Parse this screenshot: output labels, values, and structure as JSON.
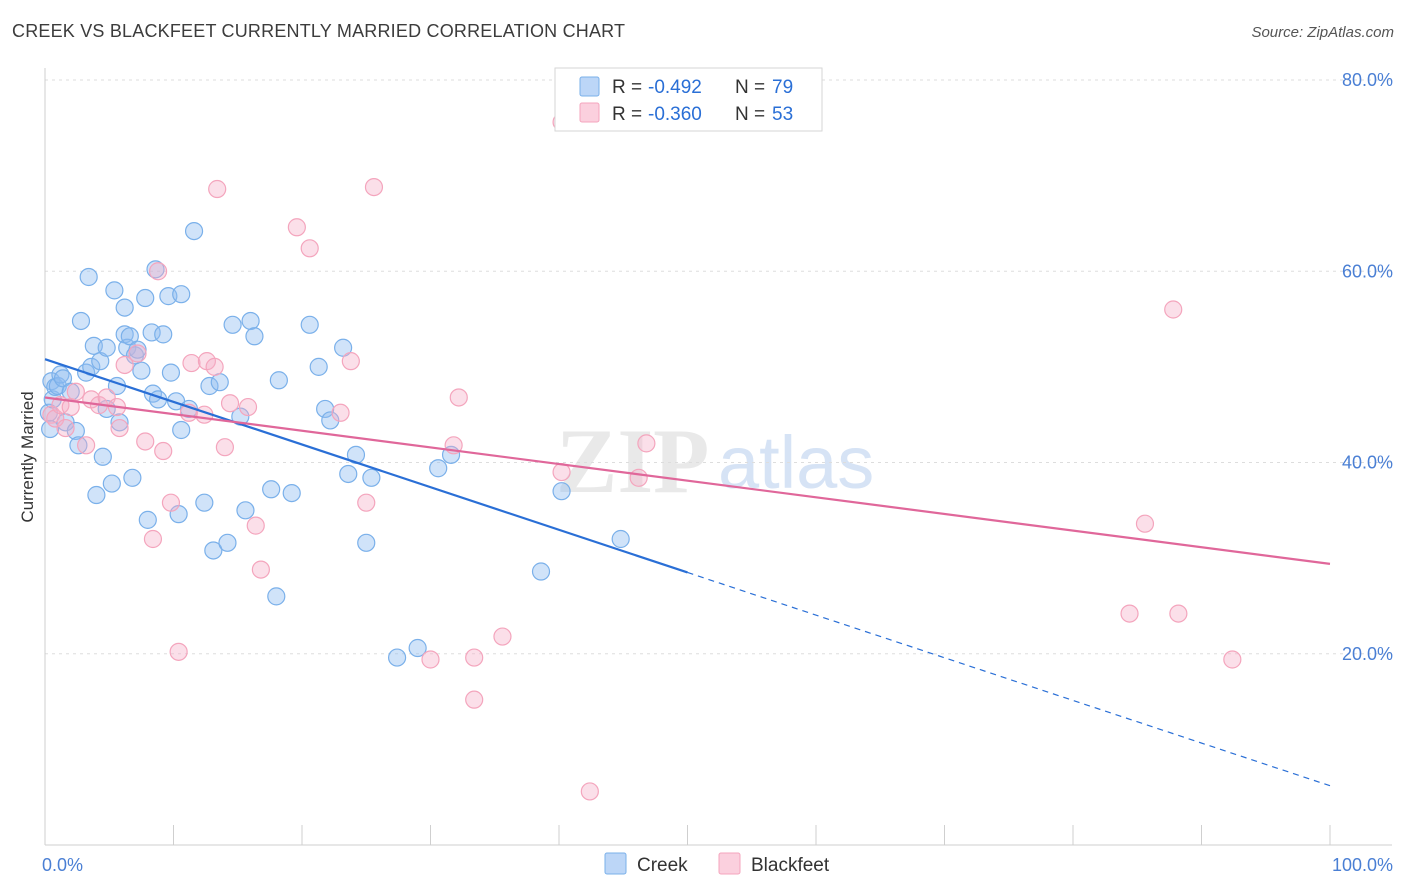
{
  "title": "CREEK VS BLACKFEET CURRENTLY MARRIED CORRELATION CHART",
  "source": "Source: ZipAtlas.com",
  "watermark": {
    "part1": "ZIP",
    "part2": "atlas"
  },
  "chart_data": {
    "type": "scatter",
    "ylabel": "Currently Married",
    "xlim": [
      0,
      100
    ],
    "ylim": [
      0,
      80
    ],
    "x_tick_labels": [
      {
        "value": 0,
        "label": "0.0%"
      },
      {
        "value": 100,
        "label": "100.0%"
      }
    ],
    "y_tick_labels": [
      {
        "value": 20,
        "label": "20.0%"
      },
      {
        "value": 40,
        "label": "40.0%"
      },
      {
        "value": 60,
        "label": "60.0%"
      },
      {
        "value": 80,
        "label": "80.0%"
      }
    ],
    "grid": true,
    "legend_position": "top-center",
    "stats": [
      {
        "series": "Creek",
        "r_label": "R =",
        "r_value": "-0.492",
        "n_label": "N =",
        "n_value": "79"
      },
      {
        "series": "Blackfeet",
        "r_label": "R =",
        "r_value": "-0.360",
        "n_label": "N =",
        "n_value": "53"
      }
    ],
    "series": [
      {
        "name": "Creek",
        "color": "#7ab0ea",
        "line_color": "#2a6fd6",
        "trend": {
          "x0": 0,
          "y0": 50.8,
          "x1": 50,
          "y1": 28.5,
          "dash_x1": 100,
          "dash_y1": 6.2
        },
        "points": [
          [
            0.3,
            45.2
          ],
          [
            0.4,
            43.5
          ],
          [
            0.5,
            48.5
          ],
          [
            0.6,
            46.6
          ],
          [
            0.8,
            47.9
          ],
          [
            1.0,
            48.0
          ],
          [
            1.2,
            49.2
          ],
          [
            1.4,
            48.8
          ],
          [
            1.6,
            44.2
          ],
          [
            2.0,
            47.4
          ],
          [
            2.4,
            43.3
          ],
          [
            2.6,
            41.8
          ],
          [
            2.8,
            54.8
          ],
          [
            3.2,
            49.4
          ],
          [
            3.4,
            59.4
          ],
          [
            3.6,
            50.0
          ],
          [
            3.8,
            52.2
          ],
          [
            4.0,
            36.6
          ],
          [
            4.3,
            50.6
          ],
          [
            4.5,
            40.6
          ],
          [
            4.8,
            45.6
          ],
          [
            4.8,
            52.0
          ],
          [
            5.2,
            37.8
          ],
          [
            5.4,
            58.0
          ],
          [
            5.6,
            48.0
          ],
          [
            5.8,
            44.2
          ],
          [
            6.2,
            56.2
          ],
          [
            6.2,
            53.4
          ],
          [
            6.4,
            52.0
          ],
          [
            6.6,
            53.2
          ],
          [
            6.8,
            38.4
          ],
          [
            7.0,
            51.2
          ],
          [
            7.2,
            51.8
          ],
          [
            7.5,
            49.6
          ],
          [
            7.8,
            57.2
          ],
          [
            8.0,
            34.0
          ],
          [
            8.3,
            53.6
          ],
          [
            8.4,
            47.2
          ],
          [
            8.6,
            60.2
          ],
          [
            8.8,
            46.6
          ],
          [
            9.2,
            53.4
          ],
          [
            9.6,
            57.4
          ],
          [
            9.8,
            49.4
          ],
          [
            10.2,
            46.4
          ],
          [
            10.4,
            34.6
          ],
          [
            10.6,
            57.6
          ],
          [
            10.6,
            43.4
          ],
          [
            11.2,
            45.6
          ],
          [
            11.6,
            64.2
          ],
          [
            12.4,
            35.8
          ],
          [
            12.8,
            48.0
          ],
          [
            13.1,
            30.8
          ],
          [
            13.6,
            48.4
          ],
          [
            14.2,
            31.6
          ],
          [
            14.6,
            54.4
          ],
          [
            15.2,
            44.8
          ],
          [
            15.6,
            35.0
          ],
          [
            16.0,
            54.8
          ],
          [
            16.3,
            53.2
          ],
          [
            17.6,
            37.2
          ],
          [
            18.0,
            26.0
          ],
          [
            18.2,
            48.6
          ],
          [
            19.2,
            36.8
          ],
          [
            20.6,
            54.4
          ],
          [
            21.3,
            50.0
          ],
          [
            21.8,
            45.6
          ],
          [
            22.2,
            44.4
          ],
          [
            23.2,
            52.0
          ],
          [
            23.6,
            38.8
          ],
          [
            24.2,
            40.8
          ],
          [
            25.0,
            31.6
          ],
          [
            25.4,
            38.4
          ],
          [
            27.4,
            19.6
          ],
          [
            29.0,
            20.6
          ],
          [
            30.6,
            39.4
          ],
          [
            31.6,
            40.8
          ],
          [
            38.6,
            28.6
          ],
          [
            40.2,
            37.0
          ],
          [
            44.8,
            32.0
          ]
        ]
      },
      {
        "name": "Blackfeet",
        "color": "#f4a5bd",
        "line_color": "#e0679a",
        "trend": {
          "x0": 0,
          "y0": 46.8,
          "x1": 100,
          "y1": 29.4
        },
        "points": [
          [
            0.5,
            45.0
          ],
          [
            0.8,
            44.6
          ],
          [
            1.2,
            46.0
          ],
          [
            1.6,
            43.6
          ],
          [
            2.0,
            45.8
          ],
          [
            2.4,
            47.4
          ],
          [
            3.2,
            41.8
          ],
          [
            3.6,
            46.6
          ],
          [
            4.2,
            46.0
          ],
          [
            4.8,
            46.8
          ],
          [
            5.6,
            45.8
          ],
          [
            5.8,
            43.6
          ],
          [
            6.2,
            50.2
          ],
          [
            7.2,
            51.4
          ],
          [
            7.8,
            42.2
          ],
          [
            8.4,
            32.0
          ],
          [
            8.8,
            60.0
          ],
          [
            9.2,
            41.2
          ],
          [
            9.8,
            35.8
          ],
          [
            10.4,
            20.2
          ],
          [
            11.2,
            45.2
          ],
          [
            11.4,
            50.4
          ],
          [
            12.4,
            45.0
          ],
          [
            12.6,
            50.6
          ],
          [
            13.2,
            50.0
          ],
          [
            13.4,
            68.6
          ],
          [
            14.0,
            41.6
          ],
          [
            14.4,
            46.2
          ],
          [
            15.8,
            45.8
          ],
          [
            16.4,
            33.4
          ],
          [
            16.8,
            28.8
          ],
          [
            19.6,
            64.6
          ],
          [
            20.6,
            62.4
          ],
          [
            23.0,
            45.2
          ],
          [
            23.8,
            50.6
          ],
          [
            25.0,
            35.8
          ],
          [
            25.6,
            68.8
          ],
          [
            30.0,
            19.4
          ],
          [
            31.8,
            41.8
          ],
          [
            32.2,
            46.8
          ],
          [
            33.4,
            19.6
          ],
          [
            33.4,
            15.2
          ],
          [
            35.6,
            21.8
          ],
          [
            40.2,
            39.0
          ],
          [
            40.2,
            75.6
          ],
          [
            42.4,
            5.6
          ],
          [
            46.2,
            38.4
          ],
          [
            46.8,
            42.0
          ],
          [
            84.4,
            24.2
          ],
          [
            85.6,
            33.6
          ],
          [
            87.8,
            56.0
          ],
          [
            88.2,
            24.2
          ],
          [
            92.4,
            19.4
          ]
        ]
      }
    ]
  }
}
